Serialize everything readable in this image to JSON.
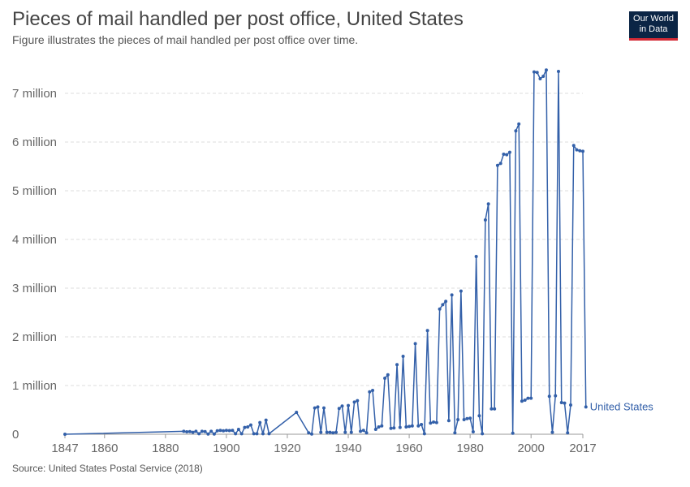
{
  "header": {
    "title": "Pieces of mail handled per post office, United States",
    "subtitle": "Figure illustrates the pieces of mail handled per post office over time."
  },
  "logo": {
    "line1": "Our World",
    "line2": "in Data"
  },
  "footer": {
    "source": "Source: United States Postal Service (2018)"
  },
  "colors": {
    "series": "#3360a9",
    "grid": "#dddddd",
    "axis": "#999999",
    "logo_bg": "#0b2545",
    "logo_accent": "#d42b36"
  },
  "chart_data": {
    "type": "line",
    "title": "Pieces of mail handled per post office, United States",
    "xlabel": "",
    "ylabel": "",
    "xlim": [
      1847,
      2017
    ],
    "ylim": [
      0,
      7500000
    ],
    "grid": true,
    "legend": "right-end label",
    "x_ticks": [
      {
        "value": 1847,
        "label": "1847"
      },
      {
        "value": 1860,
        "label": "1860"
      },
      {
        "value": 1880,
        "label": "1880"
      },
      {
        "value": 1900,
        "label": "1900"
      },
      {
        "value": 1920,
        "label": "1920"
      },
      {
        "value": 1940,
        "label": "1940"
      },
      {
        "value": 1960,
        "label": "1960"
      },
      {
        "value": 1980,
        "label": "1980"
      },
      {
        "value": 2000,
        "label": "2000"
      },
      {
        "value": 2017,
        "label": "2017"
      }
    ],
    "y_ticks": [
      {
        "value": 0,
        "label": "0"
      },
      {
        "value": 1000000,
        "label": "1 million"
      },
      {
        "value": 2000000,
        "label": "2 million"
      },
      {
        "value": 3000000,
        "label": "3 million"
      },
      {
        "value": 4000000,
        "label": "4 million"
      },
      {
        "value": 5000000,
        "label": "5 million"
      },
      {
        "value": 6000000,
        "label": "6 million"
      },
      {
        "value": 7000000,
        "label": "7 million"
      }
    ],
    "series": [
      {
        "name": "United States",
        "points": [
          [
            1847,
            0
          ],
          [
            1886,
            60000
          ],
          [
            1887,
            50000
          ],
          [
            1888,
            55000
          ],
          [
            1889,
            40000
          ],
          [
            1890,
            60000
          ],
          [
            1891,
            10000
          ],
          [
            1892,
            60000
          ],
          [
            1893,
            55000
          ],
          [
            1894,
            5000
          ],
          [
            1895,
            60000
          ],
          [
            1896,
            5000
          ],
          [
            1897,
            70000
          ],
          [
            1898,
            80000
          ],
          [
            1899,
            70000
          ],
          [
            1900,
            80000
          ],
          [
            1901,
            75000
          ],
          [
            1902,
            80000
          ],
          [
            1903,
            10000
          ],
          [
            1904,
            100000
          ],
          [
            1905,
            10000
          ],
          [
            1906,
            140000
          ],
          [
            1907,
            150000
          ],
          [
            1908,
            190000
          ],
          [
            1909,
            10000
          ],
          [
            1910,
            10000
          ],
          [
            1911,
            240000
          ],
          [
            1912,
            10000
          ],
          [
            1913,
            290000
          ],
          [
            1914,
            10000
          ],
          [
            1923,
            450000
          ],
          [
            1927,
            30000
          ],
          [
            1928,
            5000
          ],
          [
            1929,
            540000
          ],
          [
            1930,
            560000
          ],
          [
            1931,
            40000
          ],
          [
            1932,
            540000
          ],
          [
            1933,
            40000
          ],
          [
            1934,
            40000
          ],
          [
            1935,
            30000
          ],
          [
            1936,
            40000
          ],
          [
            1937,
            530000
          ],
          [
            1938,
            580000
          ],
          [
            1939,
            40000
          ],
          [
            1940,
            590000
          ],
          [
            1941,
            40000
          ],
          [
            1942,
            660000
          ],
          [
            1943,
            690000
          ],
          [
            1944,
            60000
          ],
          [
            1945,
            80000
          ],
          [
            1946,
            30000
          ],
          [
            1947,
            870000
          ],
          [
            1948,
            900000
          ],
          [
            1949,
            100000
          ],
          [
            1950,
            150000
          ],
          [
            1951,
            170000
          ],
          [
            1952,
            1150000
          ],
          [
            1953,
            1220000
          ],
          [
            1954,
            120000
          ],
          [
            1955,
            130000
          ],
          [
            1956,
            1430000
          ],
          [
            1957,
            140000
          ],
          [
            1958,
            1600000
          ],
          [
            1959,
            150000
          ],
          [
            1960,
            160000
          ],
          [
            1961,
            170000
          ],
          [
            1962,
            1860000
          ],
          [
            1963,
            170000
          ],
          [
            1964,
            200000
          ],
          [
            1965,
            10000
          ],
          [
            1966,
            2130000
          ],
          [
            1967,
            230000
          ],
          [
            1968,
            250000
          ],
          [
            1969,
            240000
          ],
          [
            1970,
            2570000
          ],
          [
            1971,
            2660000
          ],
          [
            1972,
            2730000
          ],
          [
            1973,
            280000
          ],
          [
            1974,
            2860000
          ],
          [
            1975,
            30000
          ],
          [
            1976,
            300000
          ],
          [
            1977,
            2940000
          ],
          [
            1978,
            300000
          ],
          [
            1979,
            320000
          ],
          [
            1980,
            330000
          ],
          [
            1981,
            50000
          ],
          [
            1982,
            3650000
          ],
          [
            1983,
            380000
          ],
          [
            1984,
            10000
          ],
          [
            1985,
            4400000
          ],
          [
            1986,
            4730000
          ],
          [
            1987,
            520000
          ],
          [
            1988,
            520000
          ],
          [
            1989,
            5520000
          ],
          [
            1990,
            5560000
          ],
          [
            1991,
            5750000
          ],
          [
            1992,
            5740000
          ],
          [
            1993,
            5790000
          ],
          [
            1994,
            20000
          ],
          [
            1995,
            6230000
          ],
          [
            1996,
            6370000
          ],
          [
            1997,
            680000
          ],
          [
            1998,
            700000
          ],
          [
            1999,
            740000
          ],
          [
            2000,
            740000
          ],
          [
            2001,
            7440000
          ],
          [
            2002,
            7430000
          ],
          [
            2003,
            7300000
          ],
          [
            2004,
            7350000
          ],
          [
            2005,
            7480000
          ],
          [
            2006,
            780000
          ],
          [
            2007,
            40000
          ],
          [
            2008,
            790000
          ],
          [
            2009,
            7450000
          ],
          [
            2010,
            650000
          ],
          [
            2011,
            640000
          ],
          [
            2012,
            30000
          ],
          [
            2013,
            600000
          ],
          [
            2014,
            5930000
          ],
          [
            2015,
            5840000
          ],
          [
            2016,
            5820000
          ],
          [
            2017,
            5810000
          ],
          [
            2018,
            560000
          ]
        ]
      }
    ]
  }
}
